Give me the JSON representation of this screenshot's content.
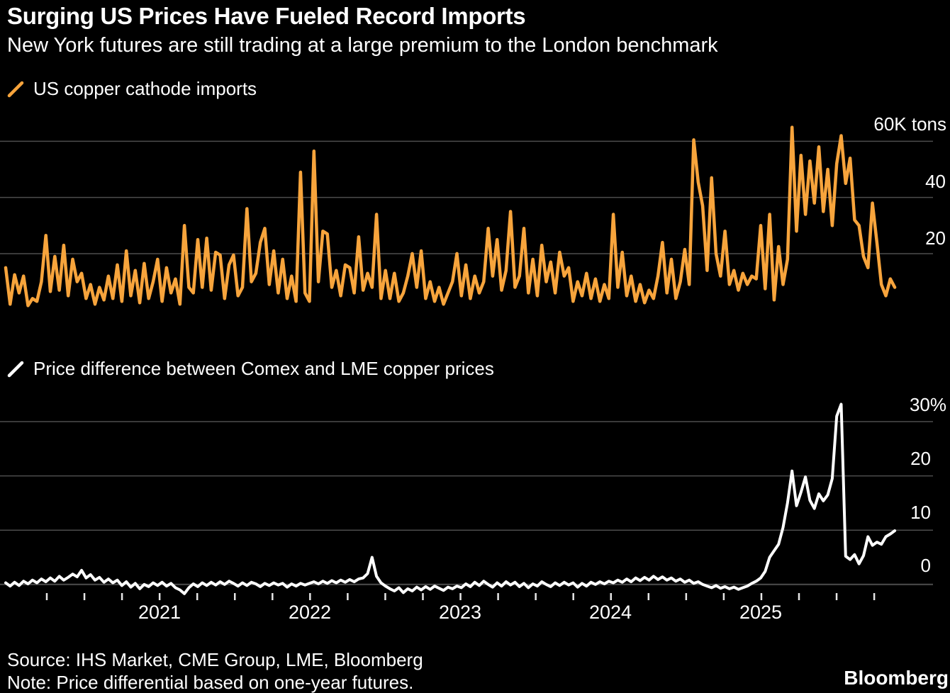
{
  "header": {
    "title": "Surging US Prices Have Fueled Record Imports",
    "subtitle": "New York futures are still trading at a large premium to the London benchmark"
  },
  "colors": {
    "background": "#000000",
    "grid": "#4d4d4d",
    "tick": "#e6e6e6",
    "imports_orange": "#F7A43C",
    "premium_white": "#ffffff"
  },
  "charts": [
    {
      "legend": "US copper cathode imports",
      "y_tick_labels": [
        "60K tons",
        "40",
        "20"
      ]
    },
    {
      "legend": "Price difference between Comex and LME copper prices",
      "y_tick_labels": [
        "30%",
        "20",
        "10",
        "0"
      ]
    }
  ],
  "x_axis": {
    "year_labels": [
      "2021",
      "2022",
      "2023",
      "2024",
      "2025"
    ]
  },
  "footer": {
    "source": "Source: IHS Market, CME Group, LME, Bloomberg",
    "note": "Note: Price differential based on one-year futures.",
    "brand": "Bloomberg"
  },
  "chart_data": [
    {
      "type": "line",
      "name": "US copper cathode imports",
      "unit": "K tons",
      "color": "#F7A43C",
      "x_span": "Jan 2020 - Nov 2025, approx weekly",
      "ylim": [
        0,
        68
      ],
      "y_ticks": [
        20,
        40,
        60
      ],
      "values": [
        15,
        2,
        12.5,
        6,
        12,
        1.5,
        4,
        3,
        10,
        26.5,
        6.5,
        19,
        7,
        23,
        5,
        18,
        10,
        13,
        4,
        9,
        2,
        8,
        3.5,
        12,
        4,
        16,
        3,
        21,
        5,
        14,
        2.5,
        16.5,
        4,
        10,
        18,
        3,
        15,
        6,
        11,
        2,
        30,
        8,
        6,
        25,
        8,
        25.5,
        7,
        20.5,
        19.5,
        4,
        16,
        19.5,
        5,
        8,
        36,
        10,
        13,
        24,
        29,
        9,
        21,
        6,
        18,
        4,
        12,
        3,
        49,
        6,
        3,
        56.5,
        10,
        28,
        27,
        8,
        14,
        5,
        16,
        15,
        6,
        26,
        7,
        13,
        8,
        34,
        4,
        14,
        4,
        13,
        3,
        6,
        12,
        20,
        8,
        21,
        4,
        10,
        3,
        8,
        2,
        6,
        10,
        20,
        5,
        16,
        4,
        12,
        6,
        10,
        29,
        12,
        25,
        7,
        14,
        35,
        8,
        12,
        29,
        6,
        18,
        5,
        23,
        10,
        17,
        6,
        20.5,
        12,
        15,
        3,
        10,
        5,
        13,
        4,
        11,
        3,
        9,
        4,
        34,
        8,
        20.5,
        5,
        12,
        3,
        9,
        2.5,
        7,
        4,
        12,
        24,
        6,
        18,
        4,
        10,
        21.5,
        9,
        60.5,
        45.5,
        37,
        14,
        47,
        20,
        12,
        28,
        9,
        14,
        7,
        13,
        9,
        12,
        11,
        30,
        7.5,
        34,
        3.5,
        22.5,
        9,
        18,
        65,
        28,
        55,
        34,
        53,
        38,
        58,
        35,
        50,
        30,
        52,
        62,
        45,
        54,
        32,
        30,
        19,
        15,
        38,
        24,
        9,
        5,
        11,
        8
      ]
    },
    {
      "type": "line",
      "name": "Price difference between Comex and LME copper prices",
      "unit": "%",
      "color": "#ffffff",
      "x_span": "Jan 2020 - Nov 2025, approx weekly",
      "ylim": [
        -2,
        34
      ],
      "y_ticks": [
        0,
        10,
        20,
        30
      ],
      "values": [
        0.3,
        -0.3,
        0.4,
        -0.2,
        0.6,
        0.1,
        0.8,
        0.3,
        1.0,
        0.5,
        1.2,
        0.6,
        1.5,
        0.8,
        1.3,
        1.9,
        1.4,
        2.6,
        1.2,
        1.8,
        0.8,
        1.3,
        0.4,
        1.0,
        0.3,
        0.8,
        -0.2,
        0.5,
        -0.5,
        0.2,
        -0.8,
        0.0,
        -0.4,
        0.3,
        -0.2,
        0.4,
        -0.3,
        0.2,
        -0.6,
        -1.0,
        -1.7,
        -0.6,
        0.1,
        -0.4,
        0.3,
        -0.2,
        0.4,
        -0.1,
        0.5,
        0.0,
        0.6,
        0.2,
        -0.3,
        0.3,
        -0.2,
        0.4,
        0.1,
        -0.4,
        0.2,
        -0.2,
        0.3,
        -0.1,
        0.2,
        -0.5,
        0.1,
        -0.3,
        0.2,
        -0.1,
        0.2,
        0.5,
        0.1,
        0.6,
        0.2,
        0.7,
        0.3,
        0.8,
        0.4,
        0.9,
        0.5,
        1.0,
        1.2,
        2.0,
        5.0,
        1.5,
        0.3,
        -0.3,
        -0.8,
        -1.2,
        -0.6,
        -1.5,
        -0.8,
        -1.2,
        -0.5,
        -1.0,
        -0.4,
        -0.9,
        -0.3,
        -0.7,
        -1.1,
        -0.5,
        -0.8,
        -0.3,
        -0.6,
        0.1,
        -0.4,
        0.4,
        -0.2,
        0.6,
        0.0,
        -0.5,
        0.3,
        -0.3,
        0.5,
        -0.1,
        0.4,
        -0.4,
        0.2,
        -0.6,
        0.1,
        -0.3,
        0.5,
        0.0,
        -0.4,
        0.3,
        -0.2,
        0.4,
        -0.1,
        0.3,
        -0.5,
        0.2,
        -0.3,
        0.4,
        0.0,
        0.5,
        0.1,
        0.6,
        0.3,
        0.8,
        0.4,
        1.0,
        0.5,
        1.2,
        0.7,
        1.3,
        0.8,
        1.5,
        0.9,
        1.4,
        0.8,
        1.2,
        0.6,
        1.0,
        0.4,
        0.8,
        0.2,
        0.5,
        0.0,
        -0.3,
        -0.6,
        -0.2,
        -0.7,
        -0.4,
        -0.8,
        -0.5,
        -0.9,
        -0.6,
        -0.3,
        0.2,
        0.6,
        1.2,
        2.4,
        5.0,
        6.2,
        7.4,
        10.5,
        15.0,
        20.9,
        14.5,
        17.0,
        19.8,
        15.5,
        14.0,
        16.7,
        15.4,
        16.5,
        19.5,
        31.0,
        33.2,
        5.2,
        4.6,
        5.5,
        3.8,
        5.3,
        8.8,
        7.2,
        7.8,
        7.4,
        8.8,
        9.3,
        9.9
      ]
    }
  ]
}
